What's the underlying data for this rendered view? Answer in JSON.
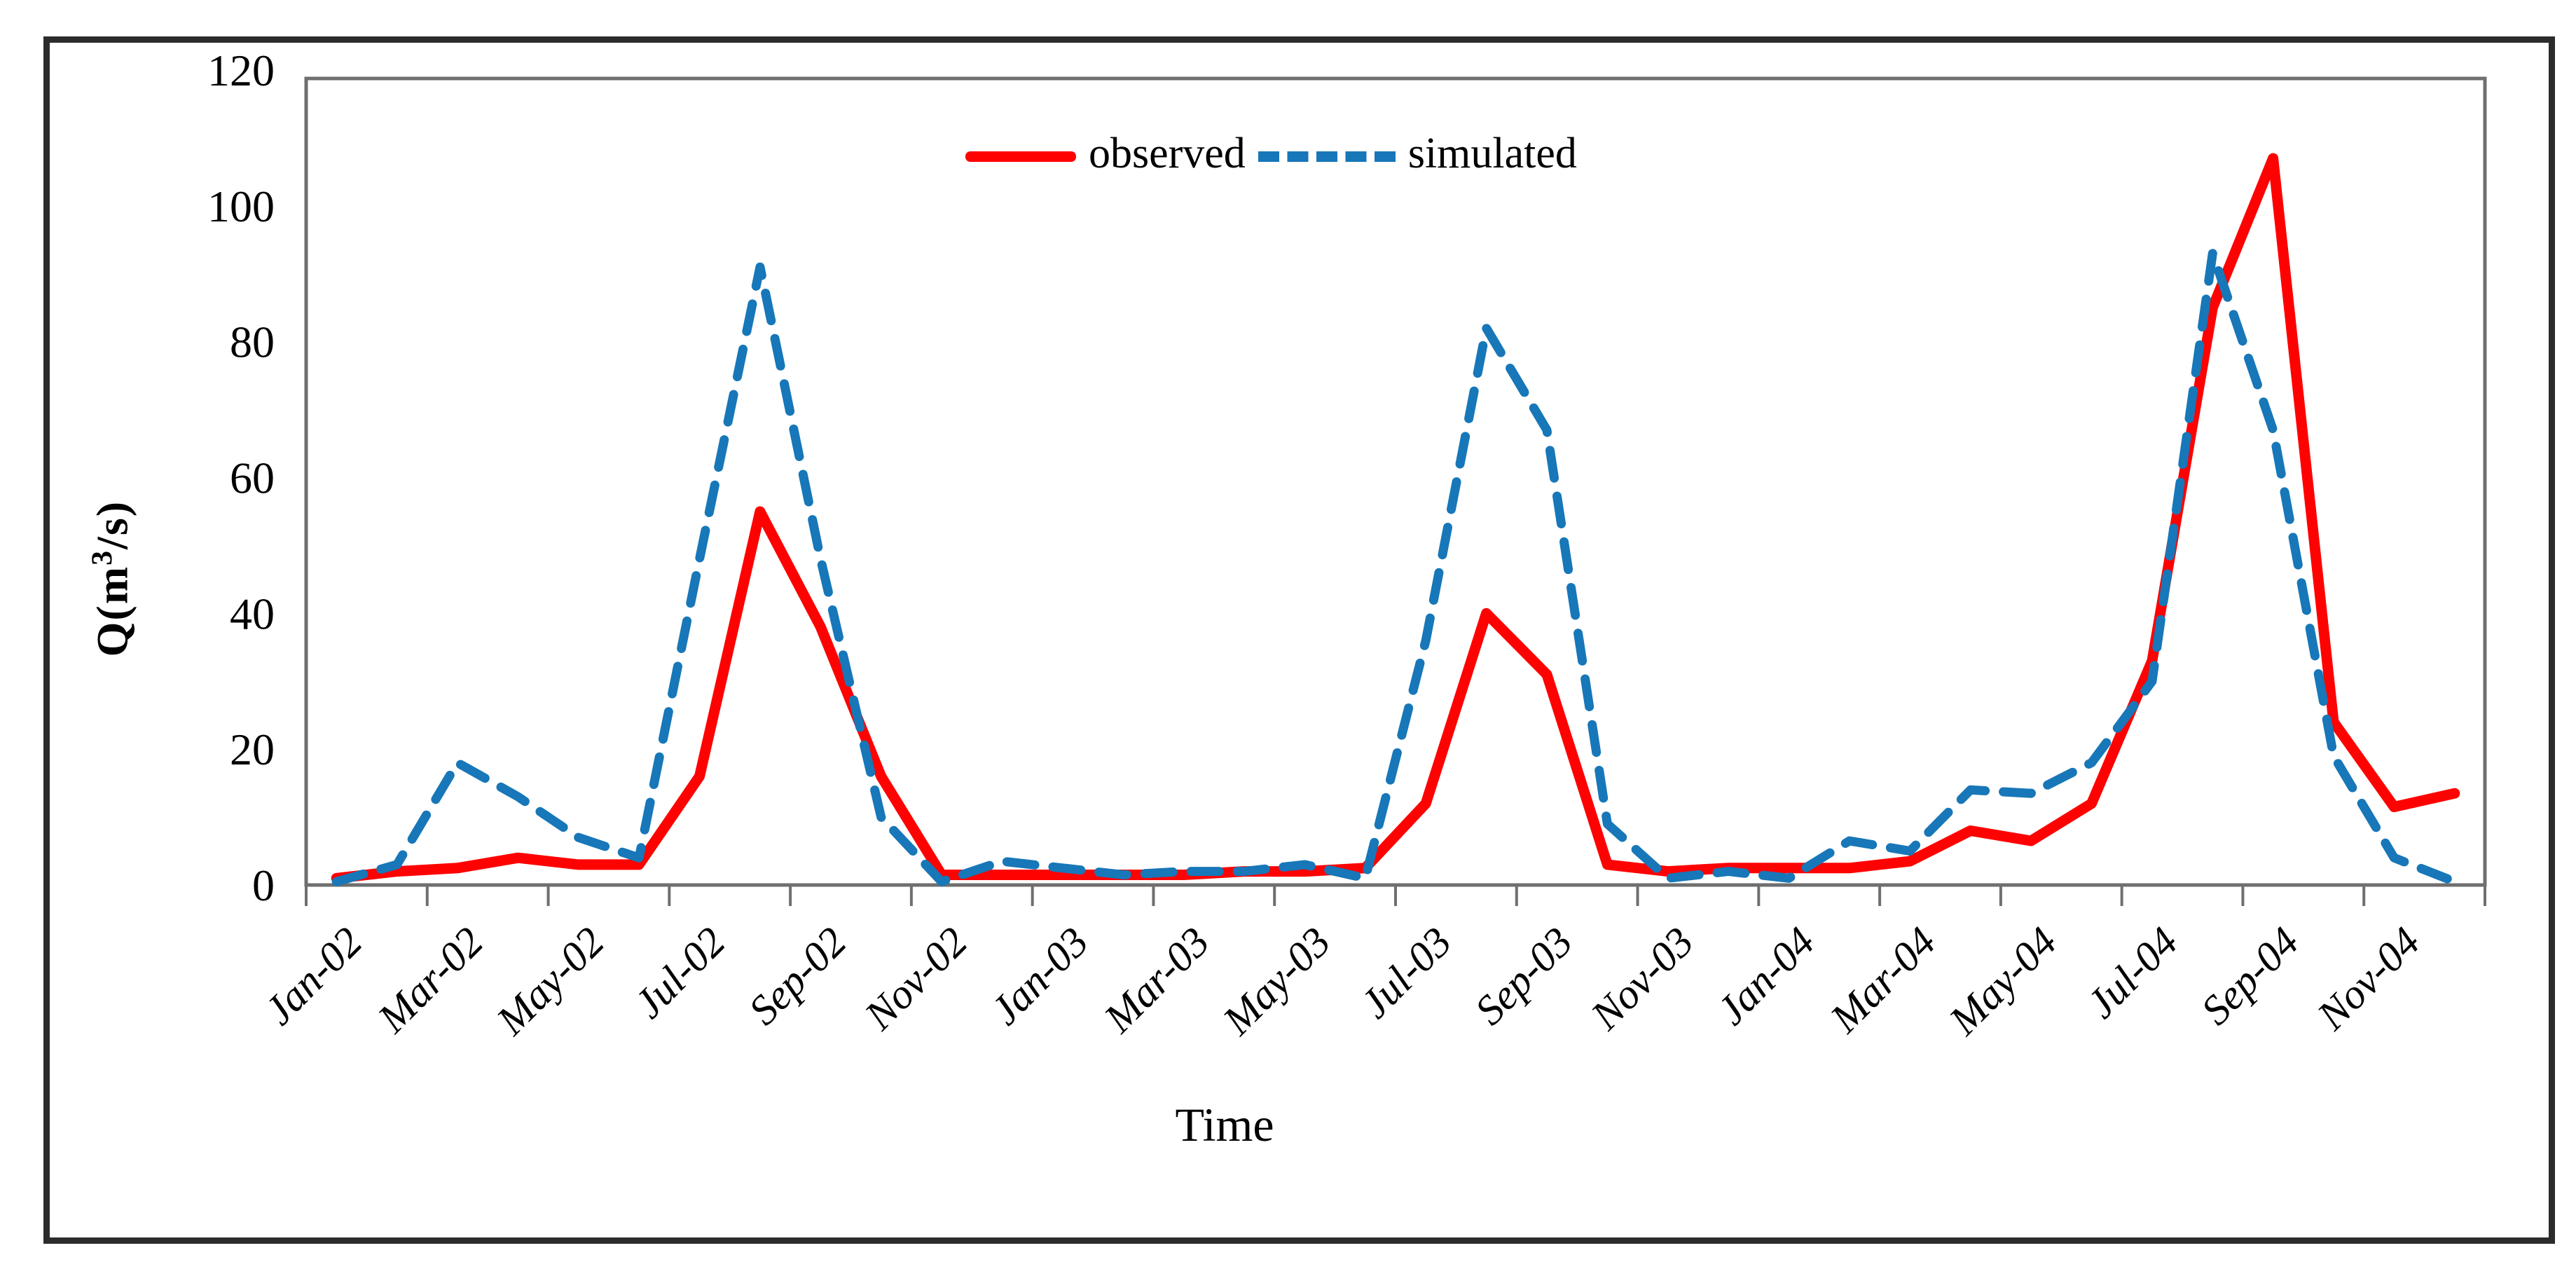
{
  "figure": {
    "x_axis_title": "Time",
    "y_axis_title": "Q(m³/s)"
  },
  "legend": {
    "observed_label": "observed",
    "simulated_label": "simulated"
  },
  "colors": {
    "observed": "#fe0202",
    "simulated": "#1777b8",
    "plot_border": "#6f6f6f",
    "outer_border": "#2c2c2c",
    "text": "#000000"
  },
  "chart_data": {
    "type": "line",
    "title": "",
    "xlabel": "Time",
    "ylabel": "Q(m³/s)",
    "ylim": [
      0,
      120
    ],
    "y_ticks": [
      0,
      20,
      40,
      60,
      80,
      100,
      120
    ],
    "x_tick_labels": [
      "Jan-02",
      "Mar-02",
      "May-02",
      "Jul-02",
      "Sep-02",
      "Nov-02",
      "Jan-03",
      "Mar-03",
      "May-03",
      "Jul-03",
      "Sep-03",
      "Nov-03",
      "Jan-04",
      "Mar-04",
      "May-04",
      "Jul-04",
      "Sep-04",
      "Nov-04"
    ],
    "grid": false,
    "legend_position": "top-center",
    "categories": [
      "Jan-02",
      "Feb-02",
      "Mar-02",
      "Apr-02",
      "May-02",
      "Jun-02",
      "Jul-02",
      "Aug-02",
      "Sep-02",
      "Oct-02",
      "Nov-02",
      "Dec-02",
      "Jan-03",
      "Feb-03",
      "Mar-03",
      "Apr-03",
      "May-03",
      "Jun-03",
      "Jul-03",
      "Aug-03",
      "Sep-03",
      "Oct-03",
      "Nov-03",
      "Dec-03",
      "Jan-04",
      "Feb-04",
      "Mar-04",
      "Apr-04",
      "May-04",
      "Jun-04",
      "Jul-04",
      "Aug-04",
      "Sep-04",
      "Oct-04",
      "Nov-04",
      "Dec-04"
    ],
    "series": [
      {
        "name": "observed",
        "style": "solid",
        "color": "#fe0202",
        "values": [
          1,
          2,
          2.5,
          4,
          3,
          3,
          16,
          55,
          38,
          16,
          1.5,
          1.5,
          1.5,
          1.5,
          1.5,
          2,
          2,
          2.5,
          12,
          40,
          31,
          3,
          2,
          2.5,
          2.5,
          2.5,
          3.5,
          8,
          6.5,
          12,
          33,
          85,
          107,
          24,
          11.5,
          13.5
        ]
      },
      {
        "name": "simulated",
        "style": "dashed",
        "color": "#1777b8",
        "values": [
          0.5,
          3,
          18,
          13,
          7,
          4,
          48,
          91,
          48,
          10,
          0.5,
          3.5,
          2.5,
          1.5,
          2,
          2,
          3,
          1,
          36,
          82,
          67,
          9,
          1,
          2,
          1,
          6.5,
          5,
          14,
          13.5,
          18,
          30,
          93,
          67,
          19,
          4,
          0.5
        ]
      }
    ]
  }
}
